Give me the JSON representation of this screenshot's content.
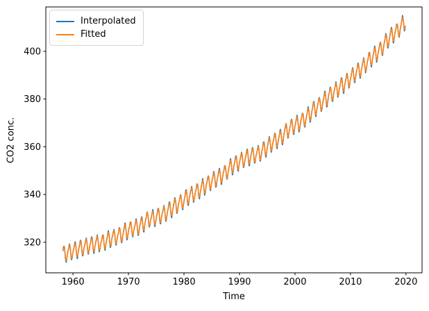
{
  "chart_data": {
    "type": "line",
    "title": "",
    "xlabel": "Time",
    "ylabel": "CO2 conc.",
    "xlim": [
      1955.1,
      2022.9
    ],
    "ylim": [
      307.2,
      418.6
    ],
    "xticks": [
      1960,
      1970,
      1980,
      1990,
      2000,
      2010,
      2020
    ],
    "yticks": [
      320,
      340,
      360,
      380,
      400
    ],
    "grid": false,
    "background": "#ffffff",
    "axis_color": "#000000",
    "legend": {
      "position": "upper left",
      "entries": [
        {
          "label": "Interpolated",
          "color": "#1f77b4"
        },
        {
          "label": "Fitted",
          "color": "#ff7f0e"
        }
      ]
    },
    "series": [
      {
        "name": "Interpolated",
        "color": "#1f77b4",
        "line_width": 1.5
      },
      {
        "name": "Fitted",
        "color": "#ff7f0e",
        "line_width": 1.5
      }
    ],
    "sampling": {
      "first": {
        "year": 1958,
        "month": 3
      },
      "last": {
        "year": 2019,
        "month": 11
      },
      "points_per_year": 12
    },
    "trend_annual_means": {
      "start_year": 1958,
      "anchor_month_offset": 0.5,
      "values": [
        315.2,
        316.0,
        316.9,
        317.6,
        318.5,
        319.0,
        319.6,
        320.0,
        321.4,
        322.2,
        323.0,
        324.6,
        325.7,
        326.3,
        327.5,
        329.7,
        330.2,
        331.1,
        332.0,
        333.8,
        335.4,
        336.8,
        338.8,
        340.1,
        341.5,
        343.2,
        344.9,
        346.4,
        347.6,
        349.3,
        351.7,
        353.2,
        354.5,
        355.7,
        356.5,
        357.2,
        359.0,
        361.0,
        362.7,
        363.9,
        366.8,
        368.5,
        369.7,
        371.3,
        373.4,
        376.0,
        377.7,
        380.0,
        382.1,
        384.0,
        385.8,
        387.6,
        390.1,
        391.9,
        394.1,
        396.7,
        398.8,
        401.0,
        404.4,
        406.8,
        408.7,
        411.7
      ]
    },
    "interpolated_seasonal_anomalies_monthly": [
      0.0,
      0.7,
      1.4,
      2.5,
      3.0,
      2.3,
      0.7,
      -1.4,
      -3.1,
      -3.2,
      -2.1,
      -0.9
    ],
    "interpolated_seasonal_scale": 1.13,
    "interpolated_jitter": {
      "amp1": 0.22,
      "freq1": 2.399,
      "amp2": 0.15,
      "freq2": 0.71,
      "phase2": 1.3
    },
    "fitted_seasonal_harmonics": {
      "cos1": -1.04,
      "sin1": 2.59,
      "cos2": 0.65,
      "sin2": -0.42
    },
    "observed_extremes": {
      "data_min": 312.6,
      "data_max": 414.6
    }
  }
}
